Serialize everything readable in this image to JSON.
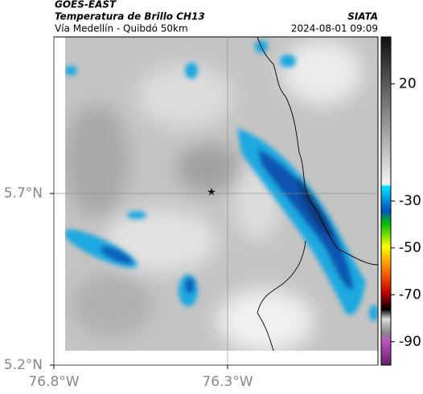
{
  "header": {
    "title": "GOES-EAST",
    "subtitle": "Temperatura de Brillo CH13",
    "region": "Vía Medellín - Quibdó 50km",
    "source": "SIATA",
    "datetime": "2024-08-01 09:09"
  },
  "map": {
    "xlim": [
      -76.8,
      -75.867
    ],
    "ylim": [
      5.2,
      6.156
    ],
    "xticks": [
      {
        "value": -76.8,
        "label": "76.8°W"
      },
      {
        "value": -76.3,
        "label": "76.3°W"
      }
    ],
    "yticks": [
      {
        "value": 5.2,
        "label": "5.2°N"
      },
      {
        "value": 5.7,
        "label": "5.7°N"
      }
    ],
    "colorbar": {
      "lim": [
        40,
        -100
      ],
      "ticks": [
        20,
        -30,
        -50,
        -70,
        -90
      ]
    }
  }
}
